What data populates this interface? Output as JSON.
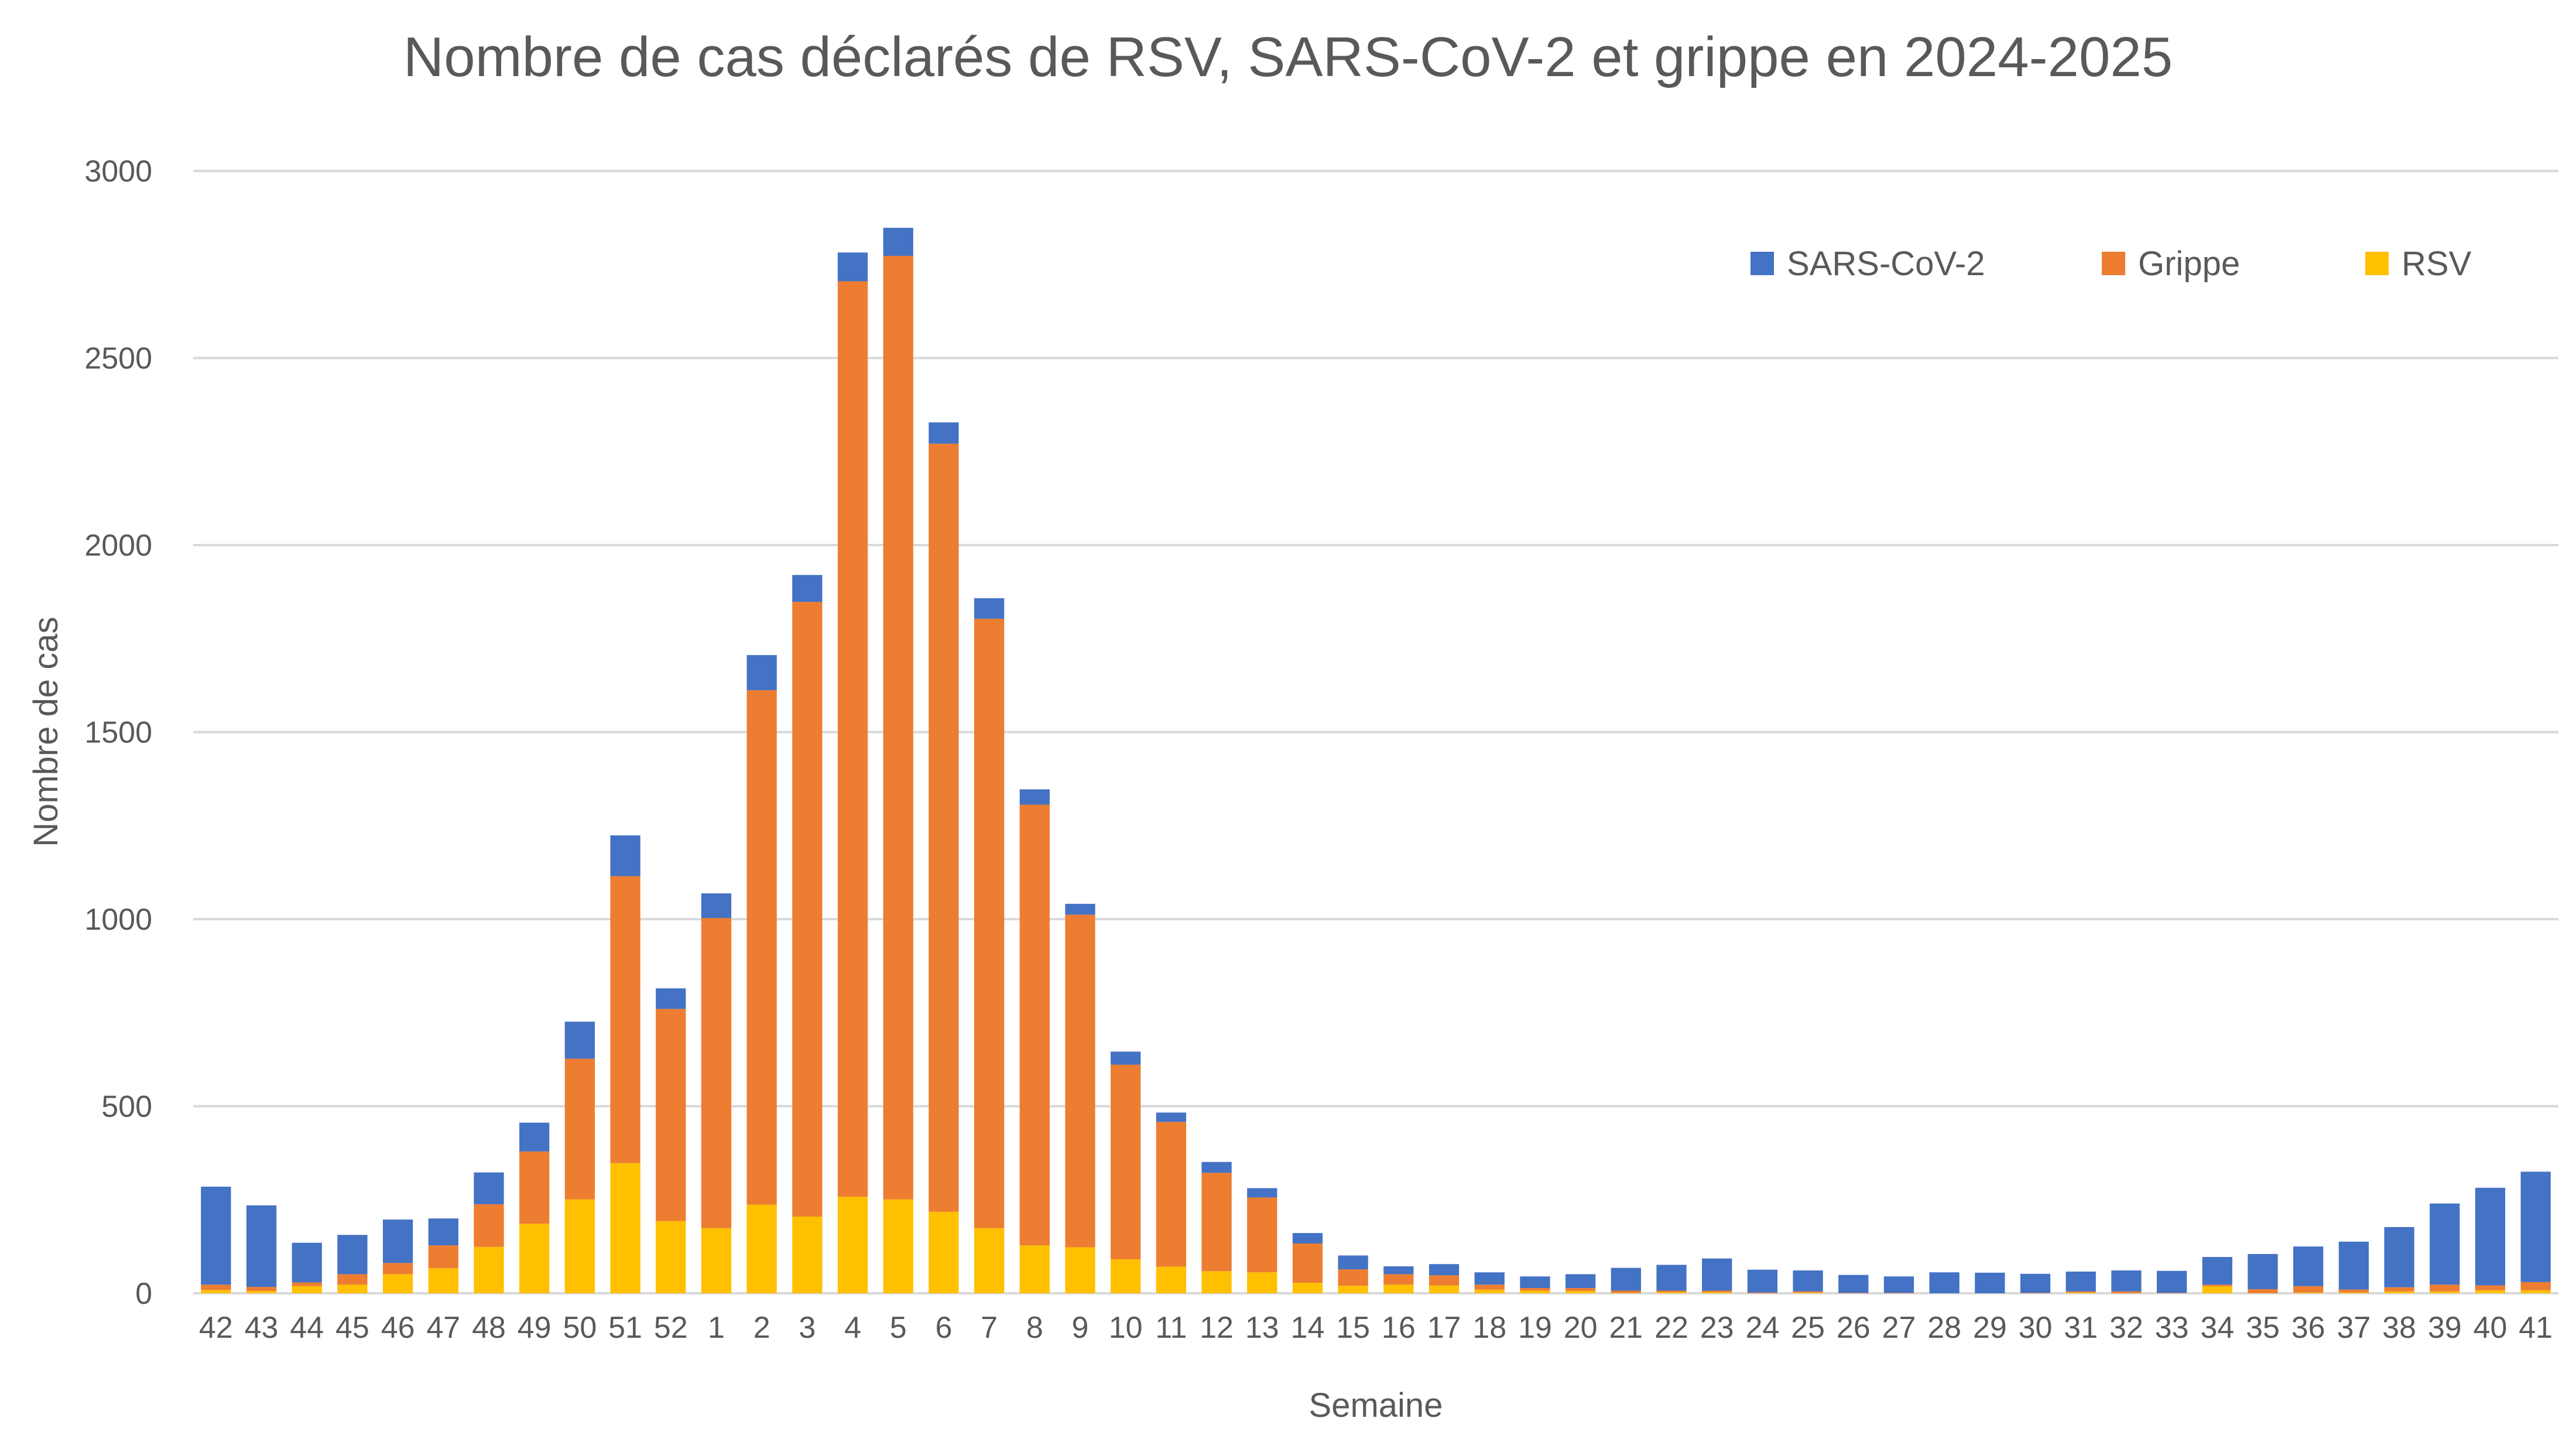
{
  "chart_data": {
    "type": "bar",
    "stacked": true,
    "title": "Nombre de cas déclarés de RSV, SARS-CoV-2 et grippe en 2024-2025",
    "xlabel": "Semaine",
    "ylabel": "Nombre de cas",
    "ylim": [
      0,
      3000
    ],
    "yticks": [
      0,
      500,
      1000,
      1500,
      2000,
      2500,
      3000
    ],
    "grid": true,
    "legend_position": "top-right",
    "categories": [
      "42",
      "43",
      "44",
      "45",
      "46",
      "47",
      "48",
      "49",
      "50",
      "51",
      "52",
      "1",
      "2",
      "3",
      "4",
      "5",
      "6",
      "7",
      "8",
      "9",
      "10",
      "11",
      "12",
      "13",
      "14",
      "15",
      "16",
      "17",
      "18",
      "19",
      "20",
      "21",
      "22",
      "23",
      "24",
      "25",
      "26",
      "27",
      "28",
      "29",
      "30",
      "31",
      "32",
      "33",
      "34",
      "35",
      "36",
      "37",
      "38",
      "39",
      "40",
      "41"
    ],
    "series": [
      {
        "name": "RSV",
        "color": "#FFC000",
        "values": [
          9,
          6,
          19,
          23,
          51,
          67,
          124,
          186,
          251,
          348,
          193,
          174,
          237,
          205,
          258,
          251,
          218,
          174,
          128,
          123,
          91,
          71,
          59,
          56,
          28,
          20,
          23,
          21,
          10,
          7,
          6,
          1,
          3,
          3,
          0,
          2,
          0,
          0,
          0,
          0,
          0,
          2,
          0,
          0,
          19,
          0,
          2,
          2,
          5,
          5,
          8,
          8
        ]
      },
      {
        "name": "Grippe",
        "color": "#ED7D31",
        "values": [
          14,
          11,
          10,
          28,
          30,
          61,
          114,
          193,
          376,
          767,
          567,
          829,
          1375,
          1643,
          2447,
          2522,
          2053,
          1629,
          1178,
          889,
          520,
          387,
          263,
          200,
          105,
          44,
          28,
          27,
          13,
          7,
          8,
          6,
          4,
          4,
          2,
          3,
          1,
          1,
          0,
          0,
          1,
          3,
          5,
          1,
          4,
          11,
          17,
          8,
          11,
          18,
          13,
          22
        ]
      },
      {
        "name": "SARS-CoV-2",
        "color": "#4472C4",
        "values": [
          262,
          218,
          106,
          105,
          116,
          72,
          85,
          77,
          99,
          109,
          55,
          66,
          94,
          72,
          77,
          75,
          57,
          55,
          41,
          29,
          35,
          25,
          29,
          25,
          28,
          37,
          21,
          30,
          33,
          31,
          37,
          61,
          69,
          86,
          61,
          56,
          48,
          44,
          56,
          55,
          51,
          53,
          56,
          59,
          74,
          94,
          106,
          128,
          161,
          217,
          261,
          295
        ]
      }
    ],
    "legend_order": [
      "SARS-CoV-2",
      "Grippe",
      "RSV"
    ]
  }
}
